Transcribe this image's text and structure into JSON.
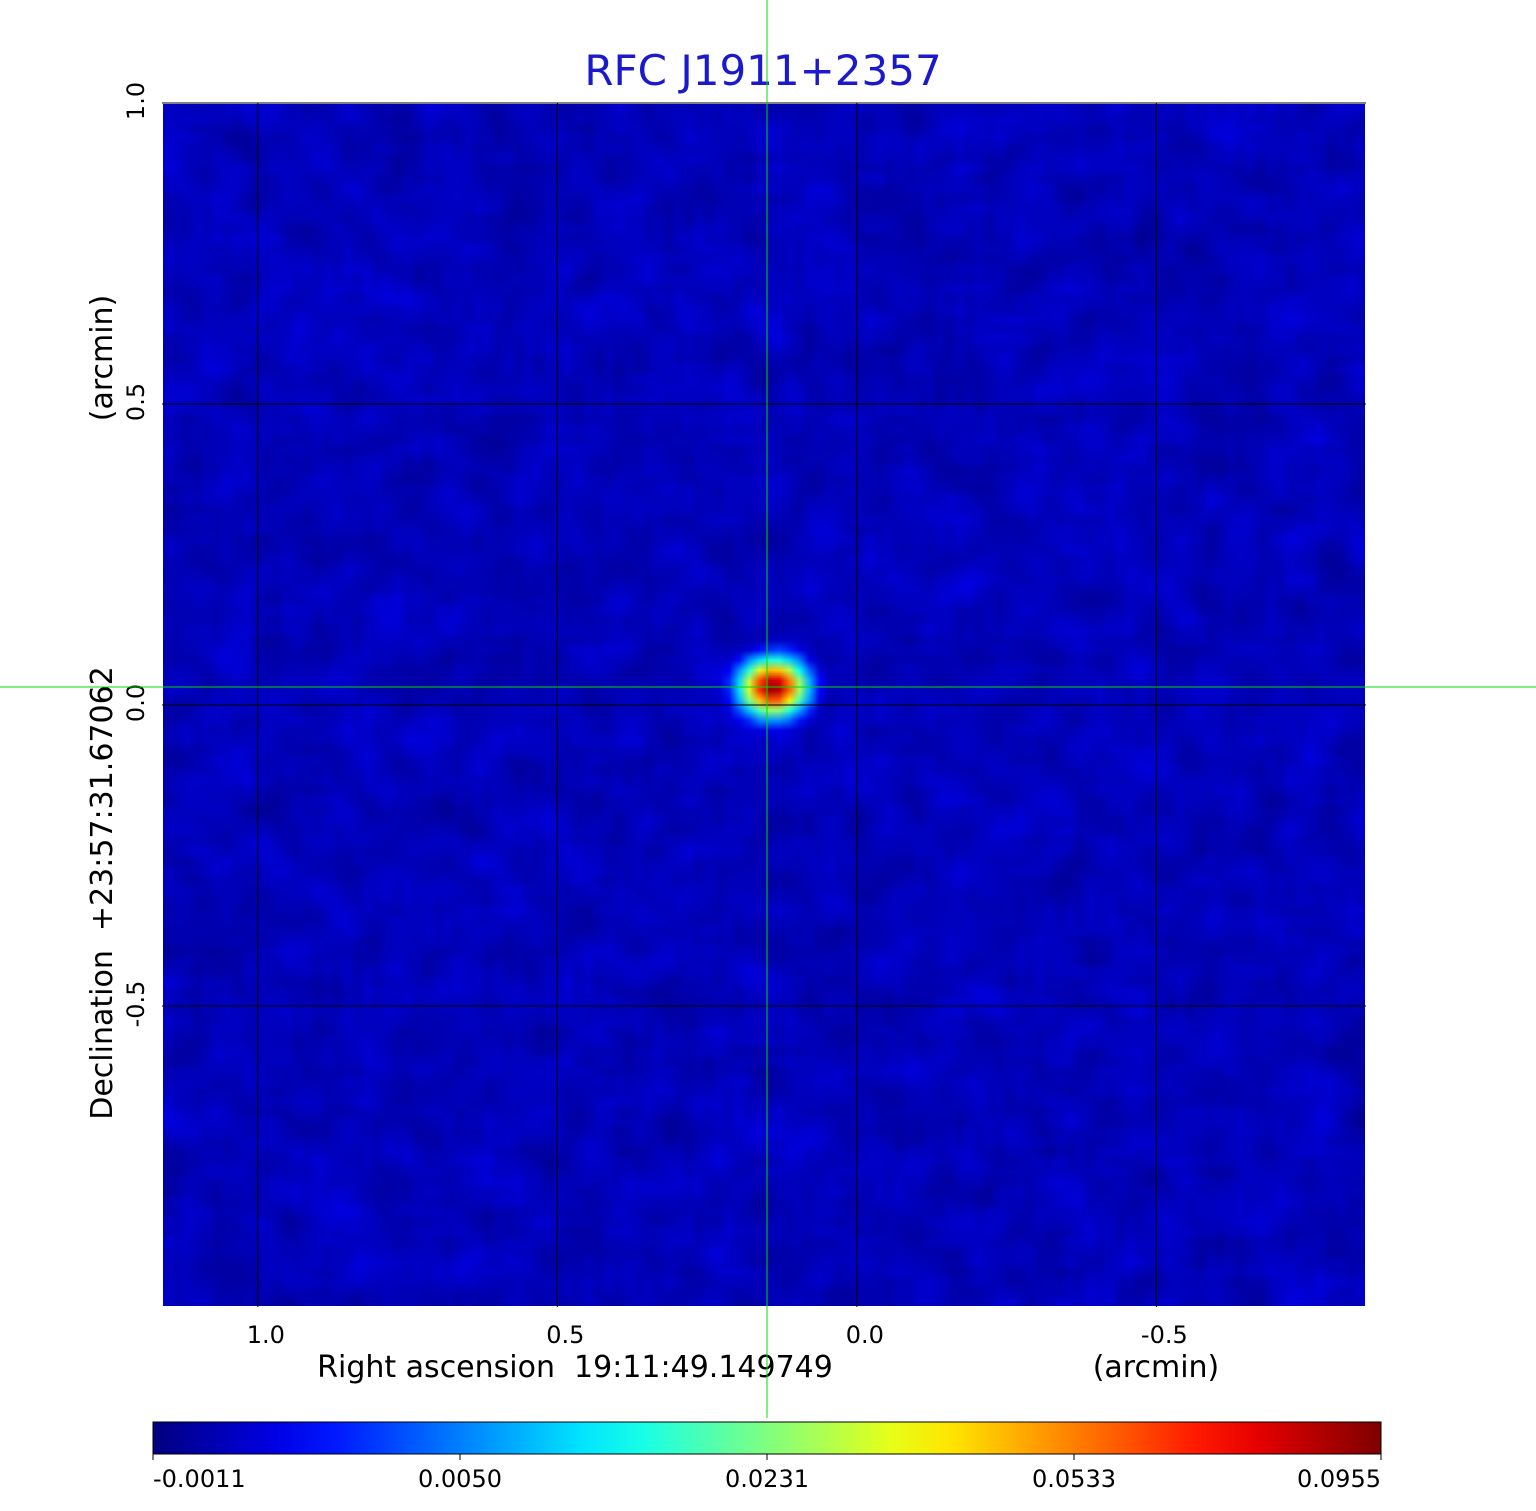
{
  "chart_data": {
    "type": "heatmap",
    "title": "RFC J1911+2357",
    "xlabel": "Right ascension  19:11:49.149749",
    "xunit": "(arcmin)",
    "ylabel": "Declination  +23:57:31.67062",
    "yunit": "(arcmin)",
    "xlim": [
      1.16,
      -0.85
    ],
    "ylim": [
      -1.0,
      1.0
    ],
    "x_ticks": [
      1.0,
      0.5,
      0.0,
      -0.5
    ],
    "x_tick_labels": [
      "1.0",
      "0.5",
      "0.0",
      "-0.5"
    ],
    "y_ticks": [
      1.0,
      0.5,
      0.0,
      -0.5
    ],
    "y_tick_labels": [
      "1.0",
      "0.5",
      "0.0",
      "-0.5"
    ],
    "grid": true,
    "crosshair": {
      "x": 0.15,
      "y": 0.03
    },
    "source": {
      "x": 0.14,
      "y": 0.03,
      "peak": 0.0955,
      "sigma_x": 0.028,
      "sigma_y": 0.024
    },
    "background_level": 0.0003,
    "noise_amplitude": 0.0009,
    "colorbar": {
      "ticks": [
        -0.0011,
        0.005,
        0.0231,
        0.0533,
        0.0955
      ],
      "tick_labels": [
        "-0.0011",
        "0.0050",
        "0.0231",
        "0.0533",
        "0.0955"
      ],
      "colormap": "jet"
    },
    "colors": {
      "title": "#1a1acc",
      "crosshair": "#00dd00",
      "grid": "#000000",
      "border": "#ffffff"
    }
  }
}
